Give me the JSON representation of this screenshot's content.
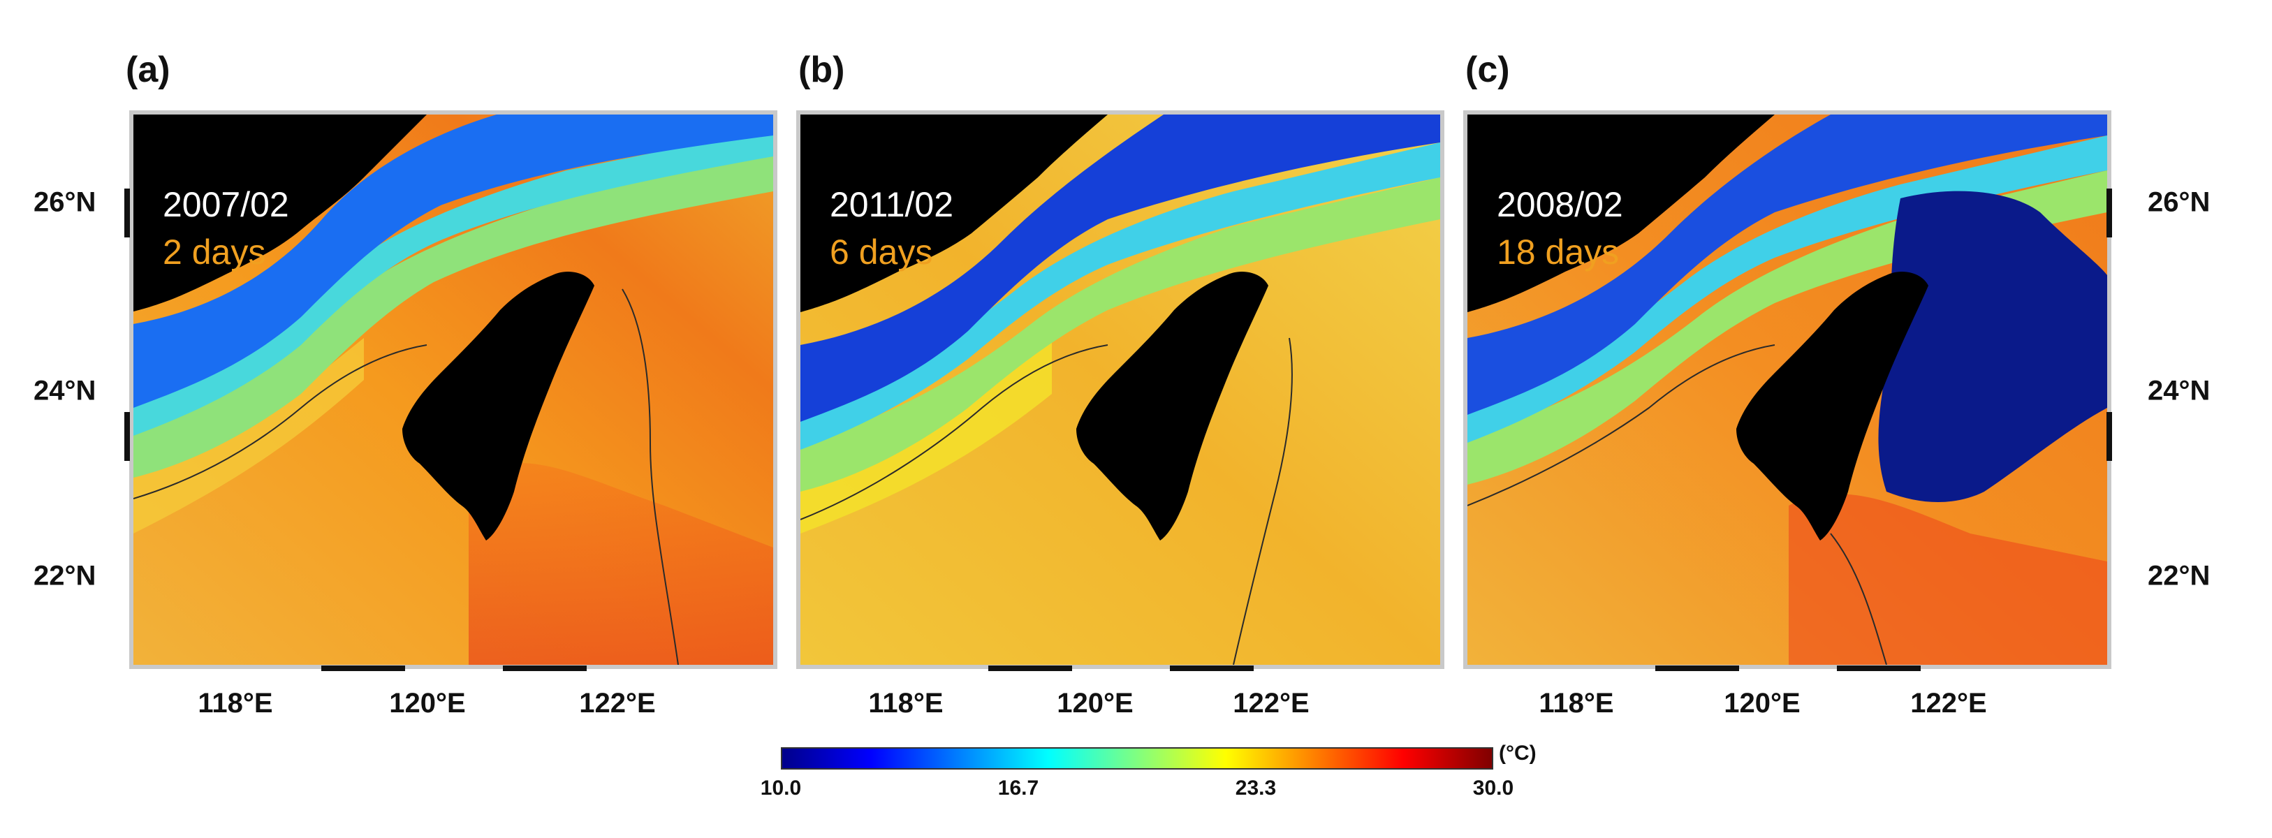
{
  "panels": [
    {
      "label": "(a)",
      "date": "2007/02",
      "duration": "2 days",
      "duration_color": "#f0a020"
    },
    {
      "label": "(b)",
      "date": "2011/02",
      "duration": "6 days",
      "duration_color": "#f0a020"
    },
    {
      "label": "(c)",
      "date": "2008/02",
      "duration": "18 days",
      "duration_color": "#f0a020"
    }
  ],
  "axes": {
    "lat_labels": [
      "26°N",
      "24°N",
      "22°N"
    ],
    "lon_labels": [
      "118°E",
      "120°E",
      "122°E"
    ]
  },
  "colorbar": {
    "unit": "(°C)",
    "tick_labels": [
      "10.0",
      "16.7",
      "23.3",
      "30.0"
    ],
    "min": 10.0,
    "max": 30.0,
    "colors": [
      "#00008b",
      "#0000ff",
      "#0080ff",
      "#00ffff",
      "#80ff80",
      "#ffff00",
      "#ff8000",
      "#ff0000",
      "#800000"
    ]
  }
}
